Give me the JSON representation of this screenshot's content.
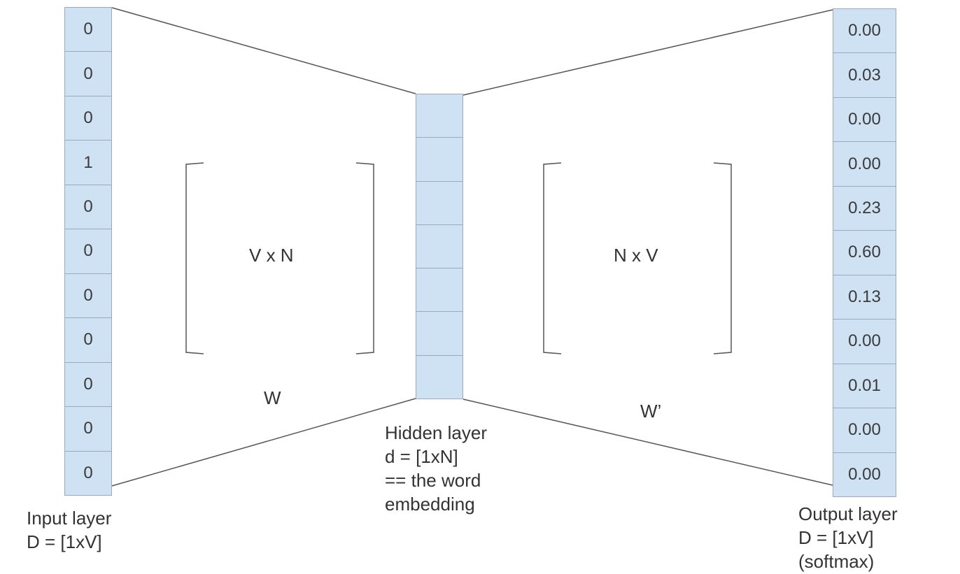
{
  "input_layer": {
    "values": [
      "0",
      "0",
      "0",
      "1",
      "0",
      "0",
      "0",
      "0",
      "0",
      "0",
      "0"
    ],
    "label_line1": "Input layer",
    "label_line2": "D = [1xV]"
  },
  "hidden_layer": {
    "cell_count": 7,
    "label_line1": "Hidden layer",
    "label_line2": "d = [1xN]",
    "label_line3": "== the word",
    "label_line4": "embedding"
  },
  "output_layer": {
    "values": [
      "0.00",
      "0.03",
      "0.00",
      "0.00",
      "0.23",
      "0.60",
      "0.13",
      "0.00",
      "0.01",
      "0.00",
      "0.00"
    ],
    "label_line1": "Output layer",
    "label_line2": "D = [1xV]",
    "label_line3": "(softmax)"
  },
  "matrix_w": {
    "dims": "V x N",
    "name": "W"
  },
  "matrix_w_prime": {
    "dims": "N x V",
    "name": "W’"
  },
  "colors": {
    "cell_fill": "#cfe2f3",
    "cell_border": "#9aaab8",
    "line": "#555555",
    "text": "#333333"
  }
}
